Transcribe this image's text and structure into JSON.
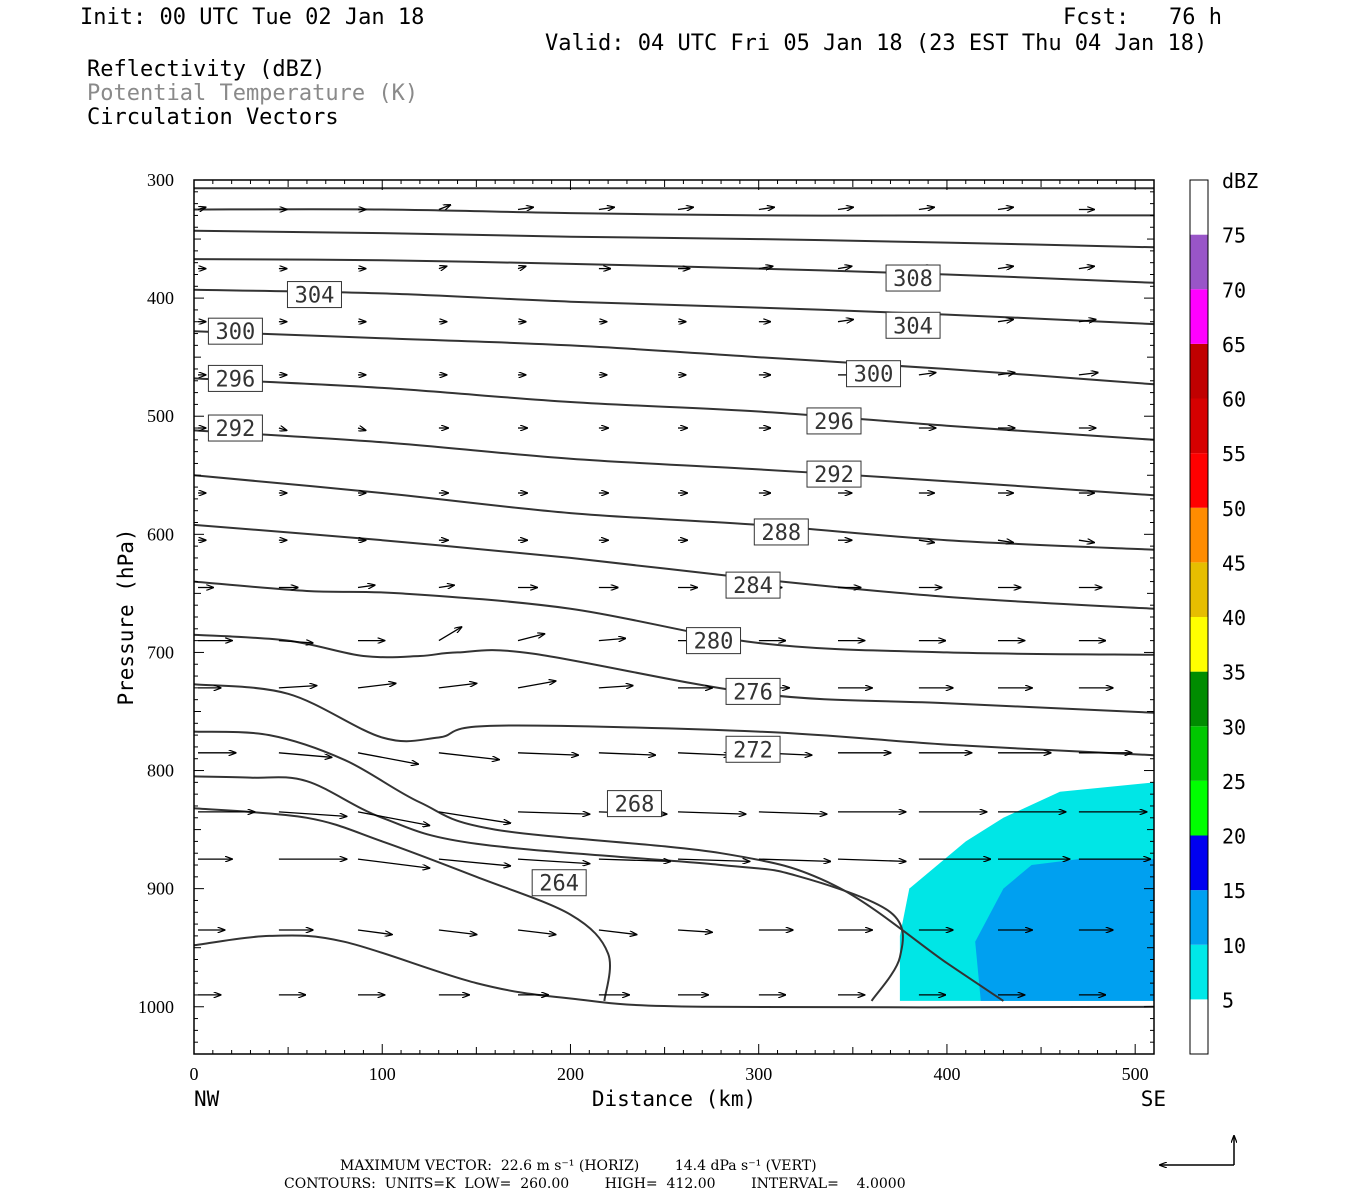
{
  "header": {
    "init": "Init: 00 UTC Tue 02 Jan 18",
    "fcst": "Fcst:   76 h",
    "valid": "Valid: 04 UTC Fri 05 Jan 18 (23 EST Thu 04 Jan 18)",
    "field1": "Reflectivity (dBZ)",
    "field2": "Potential Temperature (K)",
    "field3": "Circulation Vectors"
  },
  "footer": {
    "line1": "MAXIMUM VECTOR:  22.6 m s⁻¹ (HORIZ)        14.4 dPa s⁻¹ (VERT)",
    "line2": "CONTOURS:  UNITS=K  LOW=  260.00        HIGH=  412.00        INTERVAL=    4.0000"
  },
  "chart_data": {
    "type": "cross-section",
    "xlabel": "Distance (km)",
    "ylabel": "Pressure (hPa)",
    "x_range": [
      0,
      510
    ],
    "y_range": [
      1040,
      300
    ],
    "x_ticks": [
      0,
      100,
      200,
      300,
      400,
      500
    ],
    "y_ticks": [
      300,
      400,
      500,
      600,
      700,
      800,
      900,
      1000
    ],
    "x_end_labels": {
      "left": "NW",
      "right": "SE"
    },
    "colors": {
      "contour": "#333333",
      "reflectivity_5": "#00e6e6",
      "reflectivity_10": "#00a0f0"
    },
    "colorbar": {
      "unit": "dBZ",
      "levels": [
        "5",
        "10",
        "15",
        "20",
        "25",
        "30",
        "35",
        "40",
        "45",
        "50",
        "55",
        "60",
        "65",
        "70",
        "75"
      ],
      "colors": [
        "#ffffff",
        "#00e8e8",
        "#00a0f0",
        "#0000f0",
        "#00ff00",
        "#00c800",
        "#008c00",
        "#ffff00",
        "#e6be00",
        "#ff8c00",
        "#ff0000",
        "#d60000",
        "#c00000",
        "#ff00ff",
        "#9955c8",
        "#ffffff"
      ]
    },
    "contour_labels": [
      {
        "text": "304",
        "x": 64,
        "p": 397
      },
      {
        "text": "308",
        "x": 382,
        "p": 383
      },
      {
        "text": "300",
        "x": 22,
        "p": 428
      },
      {
        "text": "304",
        "x": 382,
        "p": 423
      },
      {
        "text": "296",
        "x": 22,
        "p": 468
      },
      {
        "text": "300",
        "x": 361,
        "p": 464
      },
      {
        "text": "292",
        "x": 22,
        "p": 510
      },
      {
        "text": "296",
        "x": 340,
        "p": 504
      },
      {
        "text": "292",
        "x": 340,
        "p": 549
      },
      {
        "text": "288",
        "x": 312,
        "p": 598
      },
      {
        "text": "284",
        "x": 297,
        "p": 643
      },
      {
        "text": "280",
        "x": 276,
        "p": 690
      },
      {
        "text": "276",
        "x": 297,
        "p": 733
      },
      {
        "text": "272",
        "x": 297,
        "p": 782
      },
      {
        "text": "268",
        "x": 234,
        "p": 828
      },
      {
        "text": "264",
        "x": 194,
        "p": 895
      }
    ],
    "isentropes": [
      [
        [
          0,
          307
        ],
        [
          510,
          307
        ]
      ],
      [
        [
          0,
          325
        ],
        [
          100,
          325
        ],
        [
          200,
          328
        ],
        [
          300,
          330
        ],
        [
          400,
          330
        ],
        [
          510,
          330
        ]
      ],
      [
        [
          0,
          343
        ],
        [
          100,
          345
        ],
        [
          200,
          348
        ],
        [
          300,
          350
        ],
        [
          400,
          353
        ],
        [
          510,
          357
        ]
      ],
      [
        [
          0,
          367
        ],
        [
          100,
          368
        ],
        [
          200,
          371
        ],
        [
          300,
          375
        ],
        [
          400,
          380
        ],
        [
          510,
          387
        ]
      ],
      [
        [
          0,
          393
        ],
        [
          100,
          396
        ],
        [
          200,
          403
        ],
        [
          300,
          408
        ],
        [
          400,
          414
        ],
        [
          510,
          422
        ]
      ],
      [
        [
          0,
          428
        ],
        [
          100,
          434
        ],
        [
          200,
          440
        ],
        [
          300,
          450
        ],
        [
          400,
          460
        ],
        [
          510,
          473
        ]
      ],
      [
        [
          0,
          468
        ],
        [
          100,
          476
        ],
        [
          200,
          488
        ],
        [
          300,
          496
        ],
        [
          400,
          508
        ],
        [
          510,
          520
        ]
      ],
      [
        [
          0,
          512
        ],
        [
          100,
          522
        ],
        [
          200,
          536
        ],
        [
          300,
          545
        ],
        [
          400,
          555
        ],
        [
          510,
          567
        ]
      ],
      [
        [
          0,
          550
        ],
        [
          100,
          565
        ],
        [
          200,
          582
        ],
        [
          300,
          592
        ],
        [
          400,
          605
        ],
        [
          510,
          613
        ]
      ],
      [
        [
          0,
          592
        ],
        [
          100,
          605
        ],
        [
          200,
          620
        ],
        [
          300,
          638
        ],
        [
          400,
          653
        ],
        [
          510,
          663
        ]
      ],
      [
        [
          0,
          640
        ],
        [
          60,
          648
        ],
        [
          110,
          650
        ],
        [
          200,
          663
        ],
        [
          300,
          692
        ],
        [
          400,
          700
        ],
        [
          510,
          702
        ]
      ],
      [
        [
          0,
          685
        ],
        [
          50,
          690
        ],
        [
          90,
          703
        ],
        [
          120,
          703
        ],
        [
          140,
          700
        ],
        [
          180,
          701
        ],
        [
          300,
          735
        ],
        [
          400,
          743
        ],
        [
          510,
          751
        ]
      ],
      [
        [
          0,
          727
        ],
        [
          50,
          735
        ],
        [
          100,
          772
        ],
        [
          130,
          772
        ],
        [
          160,
          762
        ],
        [
          300,
          767
        ],
        [
          400,
          778
        ],
        [
          510,
          787
        ]
      ],
      [
        [
          0,
          767
        ],
        [
          40,
          770
        ],
        [
          80,
          791
        ],
        [
          120,
          827
        ],
        [
          160,
          850
        ],
        [
          280,
          870
        ],
        [
          340,
          897
        ],
        [
          400,
          963
        ],
        [
          430,
          995
        ]
      ],
      [
        [
          0,
          805
        ],
        [
          30,
          806
        ],
        [
          60,
          809
        ],
        [
          100,
          840
        ],
        [
          150,
          862
        ],
        [
          280,
          880
        ],
        [
          320,
          889
        ],
        [
          370,
          920
        ],
        [
          375,
          958
        ],
        [
          360,
          995
        ]
      ],
      [
        [
          0,
          832
        ],
        [
          60,
          840
        ],
        [
          100,
          860
        ],
        [
          150,
          890
        ],
        [
          200,
          922
        ],
        [
          220,
          955
        ],
        [
          218,
          995
        ]
      ],
      [
        [
          0,
          948
        ],
        [
          40,
          940
        ],
        [
          80,
          945
        ],
        [
          150,
          980
        ],
        [
          200,
          993
        ],
        [
          270,
          1000
        ],
        [
          510,
          1000
        ]
      ]
    ],
    "reflectivity": [
      {
        "level": 5,
        "polygon": [
          [
            375,
            995
          ],
          [
            375,
            940
          ],
          [
            380,
            900
          ],
          [
            410,
            860
          ],
          [
            430,
            840
          ],
          [
            460,
            818
          ],
          [
            510,
            810
          ],
          [
            510,
            995
          ]
        ]
      },
      {
        "level": 10,
        "polygon": [
          [
            418,
            995
          ],
          [
            415,
            945
          ],
          [
            430,
            900
          ],
          [
            445,
            880
          ],
          [
            470,
            875
          ],
          [
            510,
            875
          ],
          [
            510,
            995
          ]
        ]
      }
    ],
    "vectors": {
      "columns": [
        0,
        43,
        85,
        128,
        170,
        213,
        255,
        298,
        340,
        383,
        425,
        468
      ],
      "levels": [
        {
          "p": 325,
          "u": [
            0.1,
            0.1,
            0.1,
            0.15,
            0.2,
            0.2,
            0.2,
            0.2,
            0.2,
            0.2,
            0.2,
            0.2
          ],
          "w": [
            0.05,
            0,
            0,
            0.1,
            0.05,
            0.05,
            0.05,
            0.05,
            0.05,
            0.05,
            0.05,
            0
          ]
        },
        {
          "p": 375,
          "u": [
            0.1,
            0.1,
            0.1,
            0.1,
            0.1,
            0.15,
            0.15,
            0.18,
            0.18,
            0.18,
            0.2,
            0.2
          ],
          "w": [
            0,
            0,
            0,
            0.05,
            0.05,
            0,
            0,
            0.05,
            0.05,
            0.05,
            0.05,
            0.05
          ]
        },
        {
          "p": 420,
          "u": [
            0.1,
            0.1,
            0.1,
            0.1,
            0.1,
            0.1,
            0.1,
            0.15,
            0.2,
            0.2,
            0.2,
            0.22
          ],
          "w": [
            0,
            0,
            0,
            0,
            0,
            0,
            0,
            0,
            0.05,
            0.05,
            0.05,
            0.05
          ]
        },
        {
          "p": 465,
          "u": [
            0.1,
            0.1,
            0.1,
            0.1,
            0.1,
            0.1,
            0.1,
            0.15,
            0.2,
            0.22,
            0.22,
            0.25
          ],
          "w": [
            0,
            0,
            0,
            0,
            0,
            0,
            0,
            0,
            0,
            0.05,
            0.05,
            0.05
          ]
        },
        {
          "p": 510,
          "u": [
            0.1,
            0.1,
            0.1,
            0.12,
            0.12,
            0.12,
            0.12,
            0.15,
            0.2,
            0.22,
            0.22,
            0.22
          ],
          "w": [
            0,
            -0.05,
            -0.05,
            0,
            0,
            0,
            0,
            0,
            0,
            0,
            0,
            0
          ]
        },
        {
          "p": 565,
          "u": [
            0.1,
            0.1,
            0.1,
            0.12,
            0.12,
            0.12,
            0.12,
            0.15,
            0.18,
            0.2,
            0.2,
            0.2
          ],
          "w": [
            0,
            0,
            0,
            0,
            0,
            0,
            0,
            0,
            0,
            0,
            0,
            0
          ]
        },
        {
          "p": 605,
          "u": [
            0.1,
            0.1,
            0.1,
            0.12,
            0.12,
            0.12,
            0.12,
            0.15,
            0.18,
            0.2,
            0.2,
            0.2
          ],
          "w": [
            0,
            0,
            0,
            0,
            0,
            0,
            0,
            0,
            0,
            -0.05,
            -0.05,
            -0.05
          ]
        },
        {
          "p": 645,
          "u": [
            0.2,
            0.25,
            0.22,
            0.2,
            0.25,
            0.25,
            0.25,
            0.3,
            0.3,
            0.3,
            0.3,
            0.3
          ],
          "w": [
            0,
            0,
            0.05,
            0.05,
            0,
            0,
            0,
            0,
            0,
            0,
            0,
            0
          ]
        },
        {
          "p": 690,
          "u": [
            0.45,
            0.45,
            0.35,
            0.3,
            0.35,
            0.35,
            0.35,
            0.35,
            0.35,
            0.35,
            0.35,
            0.35
          ],
          "w": [
            0,
            -0.05,
            0,
            0.3,
            0.15,
            0.05,
            0,
            0,
            0,
            0,
            0,
            0
          ]
        },
        {
          "p": 730,
          "u": [
            0.3,
            0.5,
            0.5,
            0.5,
            0.5,
            0.45,
            0.45,
            0.4,
            0.45,
            0.45,
            0.45,
            0.45
          ],
          "w": [
            0,
            0.05,
            0.1,
            0.1,
            0.15,
            0.05,
            0,
            0,
            0,
            0,
            0,
            0
          ]
        },
        {
          "p": 785,
          "u": [
            0.5,
            0.7,
            0.8,
            0.8,
            0.8,
            0.75,
            0.7,
            0.7,
            0.7,
            0.7,
            0.7,
            0.7
          ],
          "w": [
            0,
            -0.1,
            -0.25,
            -0.15,
            -0.05,
            -0.05,
            -0.05,
            -0.05,
            0,
            0,
            0,
            0
          ]
        },
        {
          "p": 835,
          "u": [
            0.75,
            0.9,
            0.95,
            0.95,
            0.95,
            0.9,
            0.9,
            0.9,
            0.9,
            0.9,
            0.9,
            0.9
          ],
          "w": [
            0,
            -0.1,
            -0.3,
            -0.25,
            -0.05,
            -0.05,
            -0.05,
            -0.05,
            0,
            0,
            0,
            0
          ]
        },
        {
          "p": 875,
          "u": [
            0.45,
            0.9,
            0.95,
            0.95,
            0.95,
            0.95,
            0.95,
            0.95,
            0.9,
            0.95,
            0.95,
            0.95
          ],
          "w": [
            0,
            0,
            -0.2,
            -0.15,
            -0.1,
            -0.05,
            -0.05,
            -0.05,
            -0.05,
            0,
            0,
            0
          ]
        },
        {
          "p": 935,
          "u": [
            0.35,
            0.45,
            0.45,
            0.5,
            0.5,
            0.5,
            0.45,
            0.45,
            0.45,
            0.45,
            0.45,
            0.45
          ],
          "w": [
            0,
            0,
            -0.1,
            -0.1,
            -0.1,
            -0.1,
            -0.05,
            0,
            0,
            0,
            0,
            0
          ]
        },
        {
          "p": 990,
          "u": [
            0.3,
            0.35,
            0.35,
            0.4,
            0.4,
            0.4,
            0.4,
            0.35,
            0.35,
            0.35,
            0.35,
            0.35
          ],
          "w": [
            0,
            0,
            0,
            0,
            0,
            0,
            0,
            0,
            0,
            0,
            0,
            0
          ]
        }
      ]
    },
    "reference_vector": {
      "horiz": "22.6 m s⁻¹",
      "vert": "14.4 dPa s⁻¹"
    }
  }
}
